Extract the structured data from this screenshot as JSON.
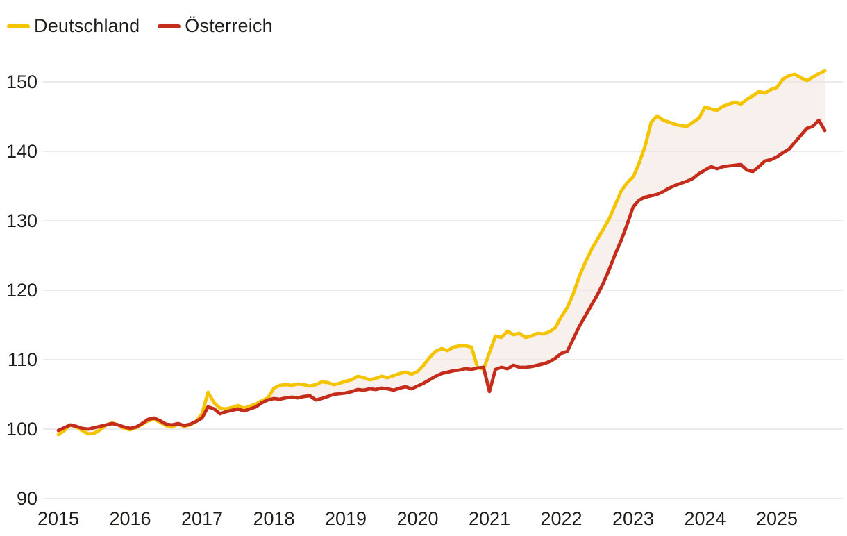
{
  "legend": {
    "items": [
      {
        "label": "Deutschland",
        "color": "#F5C400"
      },
      {
        "label": "Österreich",
        "color": "#C42D1C"
      }
    ]
  },
  "colors": {
    "deutschland_line": "#F5C400",
    "oesterreich_line": "#C42D1C",
    "between_area_fill": "#F9F2EE",
    "gridline": "#E3E3E3",
    "tick_text": "#1D1D1B",
    "background": "#FFFFFF"
  },
  "chart_data": {
    "type": "line",
    "title": "",
    "frequency": "monthly",
    "x_start": "2015-01",
    "x_end": "2025-09",
    "x_tick_labels": [
      "2015",
      "2016",
      "2017",
      "2018",
      "2019",
      "2020",
      "2021",
      "2022",
      "2023",
      "2024",
      "2025"
    ],
    "y_ticks": [
      90,
      100,
      110,
      120,
      130,
      140,
      150
    ],
    "ylim": [
      88,
      153
    ],
    "grid": "horizontal",
    "legend_position": "top-left",
    "area_between_series": true,
    "series": [
      {
        "name": "Deutschland",
        "color": "#F5C400",
        "values": [
          99.2,
          99.8,
          100.6,
          100.3,
          99.8,
          99.3,
          99.4,
          99.9,
          100.6,
          100.9,
          100.6,
          100.1,
          99.9,
          100.2,
          100.7,
          101.2,
          101.4,
          101.0,
          100.5,
          100.3,
          100.7,
          100.4,
          100.6,
          101.1,
          102.2,
          105.3,
          103.8,
          103.0,
          102.9,
          103.1,
          103.4,
          103.0,
          103.3,
          103.6,
          104.1,
          104.5,
          105.9,
          106.3,
          106.4,
          106.3,
          106.5,
          106.4,
          106.2,
          106.4,
          106.8,
          106.7,
          106.4,
          106.6,
          106.9,
          107.1,
          107.6,
          107.4,
          107.1,
          107.3,
          107.6,
          107.4,
          107.7,
          108.0,
          108.2,
          107.9,
          108.3,
          109.2,
          110.3,
          111.2,
          111.6,
          111.3,
          111.8,
          112.0,
          112.0,
          111.8,
          108.9,
          108.6,
          111.0,
          113.4,
          113.2,
          114.1,
          113.6,
          113.8,
          113.2,
          113.4,
          113.8,
          113.7,
          114.0,
          114.6,
          116.2,
          117.5,
          119.5,
          122.0,
          124.0,
          125.8,
          127.3,
          128.8,
          130.3,
          132.3,
          134.3,
          135.5,
          136.3,
          138.3,
          140.8,
          144.2,
          145.1,
          144.5,
          144.2,
          143.9,
          143.7,
          143.6,
          144.2,
          144.8,
          146.4,
          146.1,
          145.9,
          146.5,
          146.8,
          147.1,
          146.8,
          147.5,
          148.0,
          148.6,
          148.4,
          148.9,
          149.2,
          150.4,
          150.9,
          151.1,
          150.6,
          150.2,
          150.7,
          151.2,
          151.6
        ]
      },
      {
        "name": "Österreich",
        "color": "#C42D1C",
        "values": [
          99.8,
          100.2,
          100.6,
          100.4,
          100.1,
          100.0,
          100.2,
          100.4,
          100.6,
          100.8,
          100.6,
          100.3,
          100.1,
          100.3,
          100.8,
          101.4,
          101.6,
          101.2,
          100.7,
          100.6,
          100.8,
          100.5,
          100.7,
          101.1,
          101.6,
          103.2,
          102.9,
          102.2,
          102.5,
          102.7,
          102.9,
          102.6,
          102.9,
          103.2,
          103.8,
          104.2,
          104.4,
          104.3,
          104.5,
          104.6,
          104.5,
          104.7,
          104.8,
          104.2,
          104.4,
          104.7,
          105.0,
          105.1,
          105.2,
          105.4,
          105.7,
          105.6,
          105.8,
          105.7,
          105.9,
          105.8,
          105.6,
          105.9,
          106.1,
          105.8,
          106.2,
          106.6,
          107.1,
          107.6,
          108.0,
          108.2,
          108.4,
          108.5,
          108.7,
          108.6,
          108.8,
          108.9,
          105.4,
          108.6,
          108.9,
          108.7,
          109.2,
          108.9,
          108.9,
          109.0,
          109.2,
          109.4,
          109.7,
          110.2,
          110.9,
          111.2,
          113.0,
          114.8,
          116.3,
          117.8,
          119.3,
          121.0,
          123.0,
          125.2,
          127.2,
          129.5,
          132.0,
          133.0,
          133.4,
          133.6,
          133.8,
          134.2,
          134.7,
          135.1,
          135.4,
          135.7,
          136.1,
          136.8,
          137.3,
          137.8,
          137.5,
          137.8,
          137.9,
          138.0,
          138.1,
          137.3,
          137.1,
          137.8,
          138.6,
          138.8,
          139.2,
          139.8,
          140.3,
          141.3,
          142.3,
          143.3,
          143.6,
          144.5,
          143.0
        ]
      }
    ]
  }
}
